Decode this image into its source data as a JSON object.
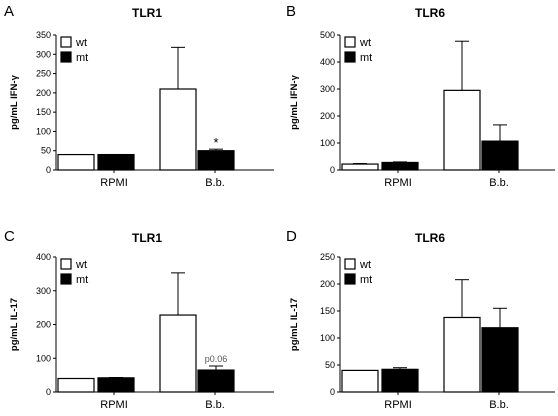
{
  "chart_data": [
    {
      "type": "bar",
      "panel": "A",
      "title": "TLR1",
      "ylabel": "pg/mL IFN-γ",
      "categories": [
        "RPMI",
        "B.b."
      ],
      "ylim": [
        0,
        350
      ],
      "yticks": [
        0,
        50,
        100,
        150,
        200,
        250,
        300,
        350
      ],
      "legend": [
        "wt",
        "mt"
      ],
      "legend_position": "top-left",
      "series": [
        {
          "name": "wt",
          "color": "#ffffff",
          "values": [
            40,
            210
          ],
          "errors": [
            0,
            108
          ]
        },
        {
          "name": "mt",
          "color": "#000000",
          "values": [
            40,
            50
          ],
          "errors": [
            0,
            4
          ]
        }
      ],
      "annotations": [
        {
          "text": "*",
          "category": 1,
          "series": 1
        }
      ]
    },
    {
      "type": "bar",
      "panel": "B",
      "title": "TLR6",
      "ylabel": "pg/mL IFN-γ",
      "categories": [
        "RPMI",
        "B.b."
      ],
      "ylim": [
        0,
        500
      ],
      "yticks": [
        0,
        100,
        200,
        300,
        400,
        500
      ],
      "legend": [
        "wt",
        "mt"
      ],
      "legend_position": "top-left",
      "series": [
        {
          "name": "wt",
          "color": "#ffffff",
          "values": [
            22,
            295
          ],
          "errors": [
            2,
            182
          ]
        },
        {
          "name": "mt",
          "color": "#000000",
          "values": [
            28,
            107
          ],
          "errors": [
            2,
            60
          ]
        }
      ],
      "annotations": []
    },
    {
      "type": "bar",
      "panel": "C",
      "title": "TLR1",
      "ylabel": "pg/mL IL-17",
      "categories": [
        "RPMI",
        "B.b."
      ],
      "ylim": [
        0,
        400
      ],
      "yticks": [
        0,
        100,
        200,
        300,
        400
      ],
      "legend": [
        "wt",
        "mt"
      ],
      "legend_position": "top-left",
      "series": [
        {
          "name": "wt",
          "color": "#ffffff",
          "values": [
            40,
            228
          ],
          "errors": [
            0,
            125
          ]
        },
        {
          "name": "mt",
          "color": "#000000",
          "values": [
            42,
            65
          ],
          "errors": [
            1,
            12
          ]
        }
      ],
      "annotations": [
        {
          "text": "p0.06",
          "category": 1,
          "series": 1
        }
      ]
    },
    {
      "type": "bar",
      "panel": "D",
      "title": "TLR6",
      "ylabel": "pg/mL IL-17",
      "categories": [
        "RPMI",
        "B.b."
      ],
      "ylim": [
        0,
        250
      ],
      "yticks": [
        0,
        50,
        100,
        150,
        200,
        250
      ],
      "legend": [
        "wt",
        "mt"
      ],
      "legend_position": "top-left",
      "series": [
        {
          "name": "wt",
          "color": "#ffffff",
          "values": [
            40,
            138
          ],
          "errors": [
            0,
            70
          ]
        },
        {
          "name": "mt",
          "color": "#000000",
          "values": [
            42,
            119
          ],
          "errors": [
            3,
            36
          ]
        }
      ],
      "annotations": []
    }
  ]
}
